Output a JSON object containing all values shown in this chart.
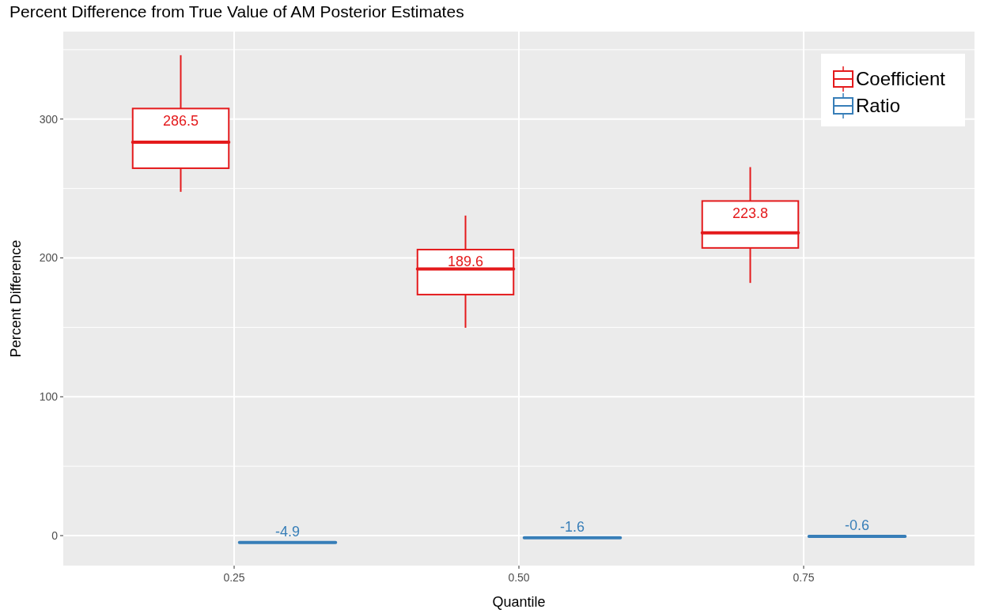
{
  "chart_data": {
    "type": "box",
    "title": "Percent Difference from True Value of AM Posterior Estimates",
    "xlabel": "Quantile",
    "ylabel": "Percent Difference",
    "categories": [
      "0.25",
      "0.50",
      "0.75"
    ],
    "series": [
      {
        "name": "Coefficient",
        "color": "#e41a1c",
        "boxes": [
          {
            "low": 247.6,
            "q1": 264.6,
            "median": 283.3,
            "q3": 307.6,
            "high": 346
          },
          {
            "low": 149.7,
            "q1": 173.6,
            "median": 192,
            "q3": 206,
            "high": 230.5
          },
          {
            "low": 182,
            "q1": 207.2,
            "median": 218,
            "q3": 241,
            "high": 265.4
          }
        ],
        "value_labels": [
          "286.5",
          "189.6",
          "223.8"
        ]
      },
      {
        "name": "Ratio",
        "color": "#377eb8",
        "boxes": [
          {
            "low": -4.9,
            "q1": -4.9,
            "median": -4.9,
            "q3": -4.9,
            "high": -4.9
          },
          {
            "low": -1.6,
            "q1": -1.6,
            "median": -1.6,
            "q3": -1.6,
            "high": -1.6
          },
          {
            "low": -0.6,
            "q1": -0.6,
            "median": -0.6,
            "q3": -0.6,
            "high": -0.6
          }
        ],
        "value_labels": [
          "-4.9",
          "-1.6",
          "-0.6"
        ]
      }
    ],
    "ylim": [
      -21.6,
      363
    ],
    "yticks": [
      0,
      {
        "value": 50,
        "label": null
      },
      100,
      {
        "value": 150,
        "label": null
      },
      200,
      {
        "value": 250,
        "label": null
      },
      300,
      {
        "value": 350,
        "label": null
      }
    ],
    "grid": true,
    "legend": "top right"
  }
}
